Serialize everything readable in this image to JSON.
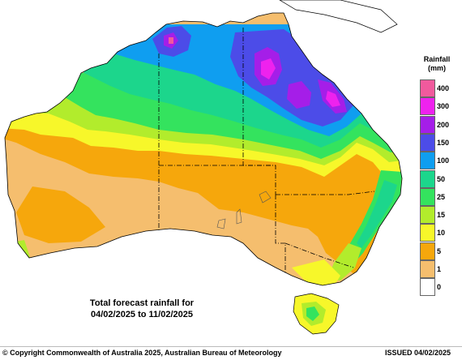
{
  "map": {
    "caption_line1": "Total forecast rainfall for",
    "caption_line2": "04/02/2025 to 11/02/2025"
  },
  "legend": {
    "title_line1": "Rainfall",
    "title_line2": "(mm)",
    "items": [
      {
        "label": "400",
        "color": "#f05a9d"
      },
      {
        "label": "300",
        "color": "#ee22ee"
      },
      {
        "label": "200",
        "color": "#a51ee8"
      },
      {
        "label": "150",
        "color": "#4c4ce8"
      },
      {
        "label": "100",
        "color": "#0f9ef0"
      },
      {
        "label": "50",
        "color": "#1cd68c"
      },
      {
        "label": "25",
        "color": "#34e35e"
      },
      {
        "label": "15",
        "color": "#b2ec2c"
      },
      {
        "label": "10",
        "color": "#f7f72a"
      },
      {
        "label": "5",
        "color": "#f6a70c"
      },
      {
        "label": "1",
        "color": "#f5be6e"
      },
      {
        "label": "0",
        "color": "#ffffff"
      }
    ]
  },
  "footer": {
    "copyright": "© Copyright Commonwealth of Australia 2025, Australian Bureau of Meteorology",
    "issued": "ISSUED 04/02/2025"
  }
}
